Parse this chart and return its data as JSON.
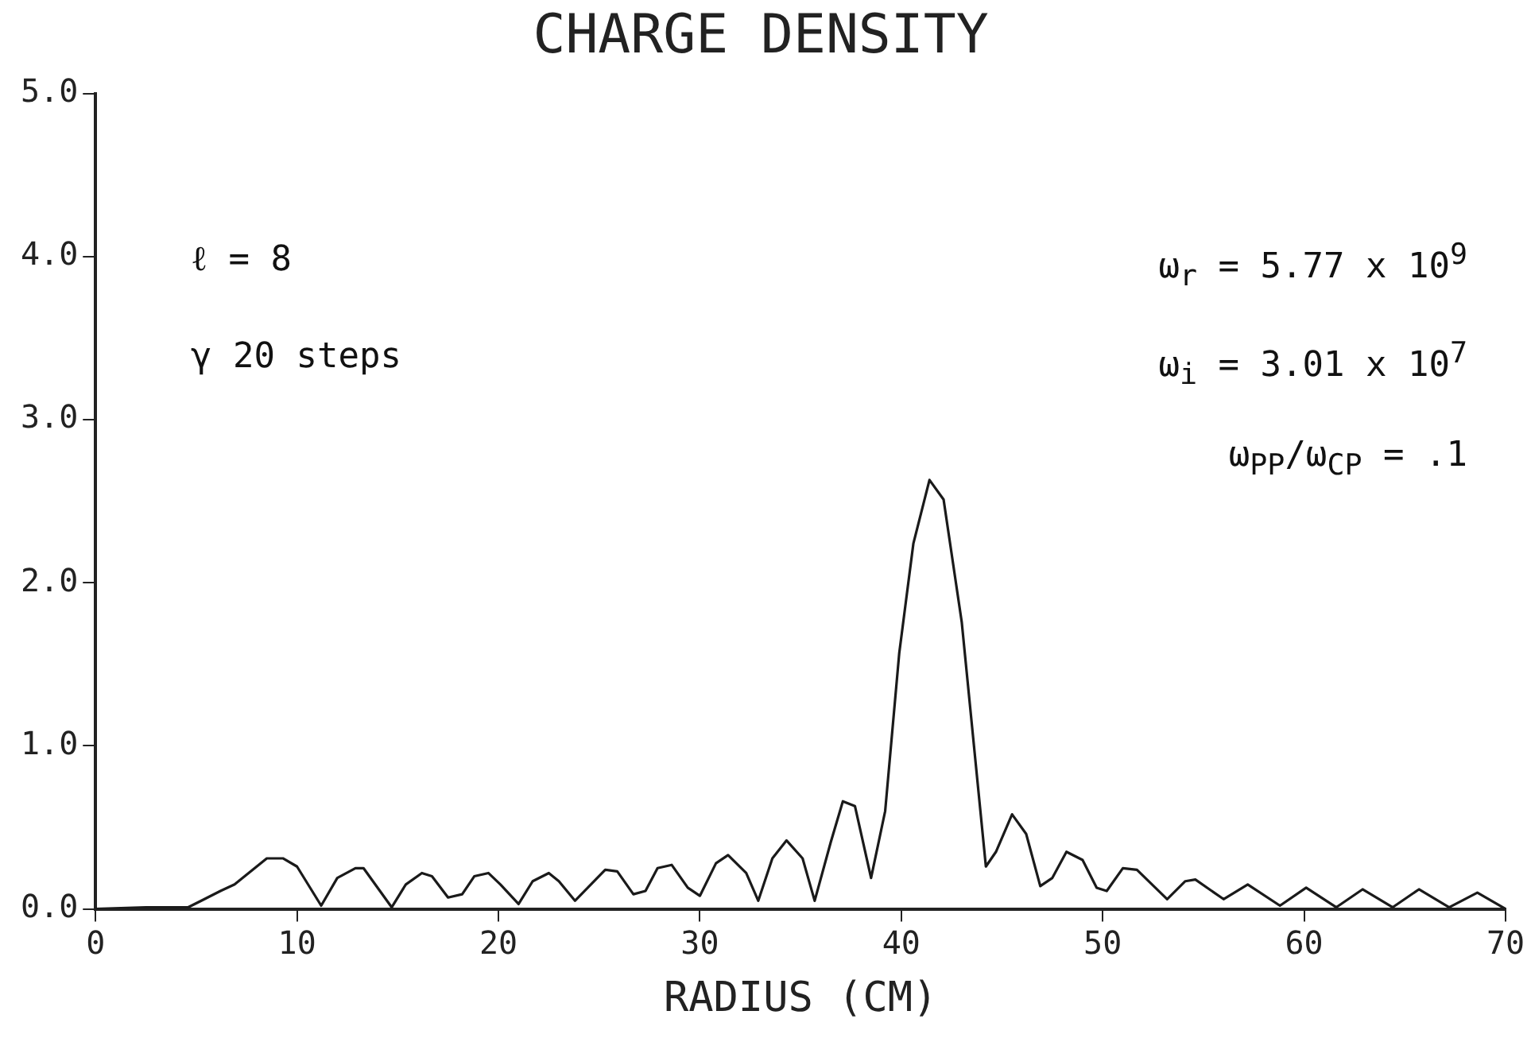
{
  "chart_data": {
    "type": "line",
    "title": "CHARGE DENSITY",
    "xlabel": "RADIUS (CM)",
    "x": [
      0,
      2.5,
      4.6,
      6.2,
      6.9,
      8.5,
      9.3,
      10.0,
      11.2,
      12.0,
      12.9,
      13.3,
      14.7,
      15.4,
      16.2,
      16.7,
      17.5,
      18.2,
      18.8,
      19.5,
      20.1,
      21.0,
      21.7,
      22.5,
      23.0,
      23.8,
      25.3,
      25.9,
      26.7,
      27.3,
      27.9,
      28.6,
      29.4,
      30.0,
      30.8,
      31.4,
      32.3,
      32.9,
      33.6,
      34.3,
      35.1,
      35.7,
      36.5,
      37.1,
      37.7,
      38.5,
      39.2,
      39.9,
      40.6,
      41.4,
      42.1,
      43.0,
      44.2,
      44.7,
      45.5,
      46.2,
      46.9,
      47.5,
      48.2,
      49.0,
      49.7,
      50.2,
      51.0,
      51.7,
      53.2,
      54.1,
      54.6,
      56.0,
      57.2,
      58.8,
      60.1,
      61.6,
      62.9,
      64.4,
      65.7,
      67.2,
      68.6,
      70
    ],
    "series": [
      {
        "color": "#1a1a1a",
        "values": [
          0,
          0.01,
          0.01,
          0.11,
          0.15,
          0.31,
          0.31,
          0.26,
          0.02,
          0.19,
          0.25,
          0.25,
          0.01,
          0.15,
          0.22,
          0.2,
          0.07,
          0.09,
          0.2,
          0.22,
          0.15,
          0.03,
          0.17,
          0.22,
          0.17,
          0.05,
          0.24,
          0.23,
          0.09,
          0.11,
          0.25,
          0.27,
          0.13,
          0.08,
          0.28,
          0.33,
          0.22,
          0.05,
          0.31,
          0.42,
          0.31,
          0.05,
          0.41,
          0.66,
          0.63,
          0.19,
          0.6,
          1.57,
          2.24,
          2.63,
          2.51,
          1.76,
          0.26,
          0.35,
          0.58,
          0.46,
          0.14,
          0.19,
          0.35,
          0.3,
          0.13,
          0.11,
          0.25,
          0.24,
          0.06,
          0.17,
          0.18,
          0.06,
          0.15,
          0.02,
          0.13,
          0.01,
          0.12,
          0.01,
          0.12,
          0.01,
          0.1,
          0
        ]
      }
    ],
    "xlim": [
      0,
      70
    ],
    "xticks": [
      0,
      10,
      20,
      30,
      40,
      50,
      60,
      70
    ],
    "ylim": [
      0,
      5
    ],
    "yticks": [
      {
        "value": 0,
        "label": "0.0"
      },
      {
        "value": 1,
        "label": "1.0"
      },
      {
        "value": 2,
        "label": "2.0"
      },
      {
        "value": 3,
        "label": "3.0"
      },
      {
        "value": 4,
        "label": "4.0"
      },
      {
        "value": 5,
        "label": "5.0"
      }
    ],
    "grid": false,
    "legend": false,
    "marker": "none",
    "line_style": "solid",
    "annotations": [
      "ℓ = 8",
      "γ  20 steps",
      "ω$_{r}$ = 5.77 x 10$^{9}$",
      "ω$_{i}$ = 3.01 x 10$^{7}$",
      "ω$_{PP}$/ω$_{CP}$ = .1"
    ]
  }
}
